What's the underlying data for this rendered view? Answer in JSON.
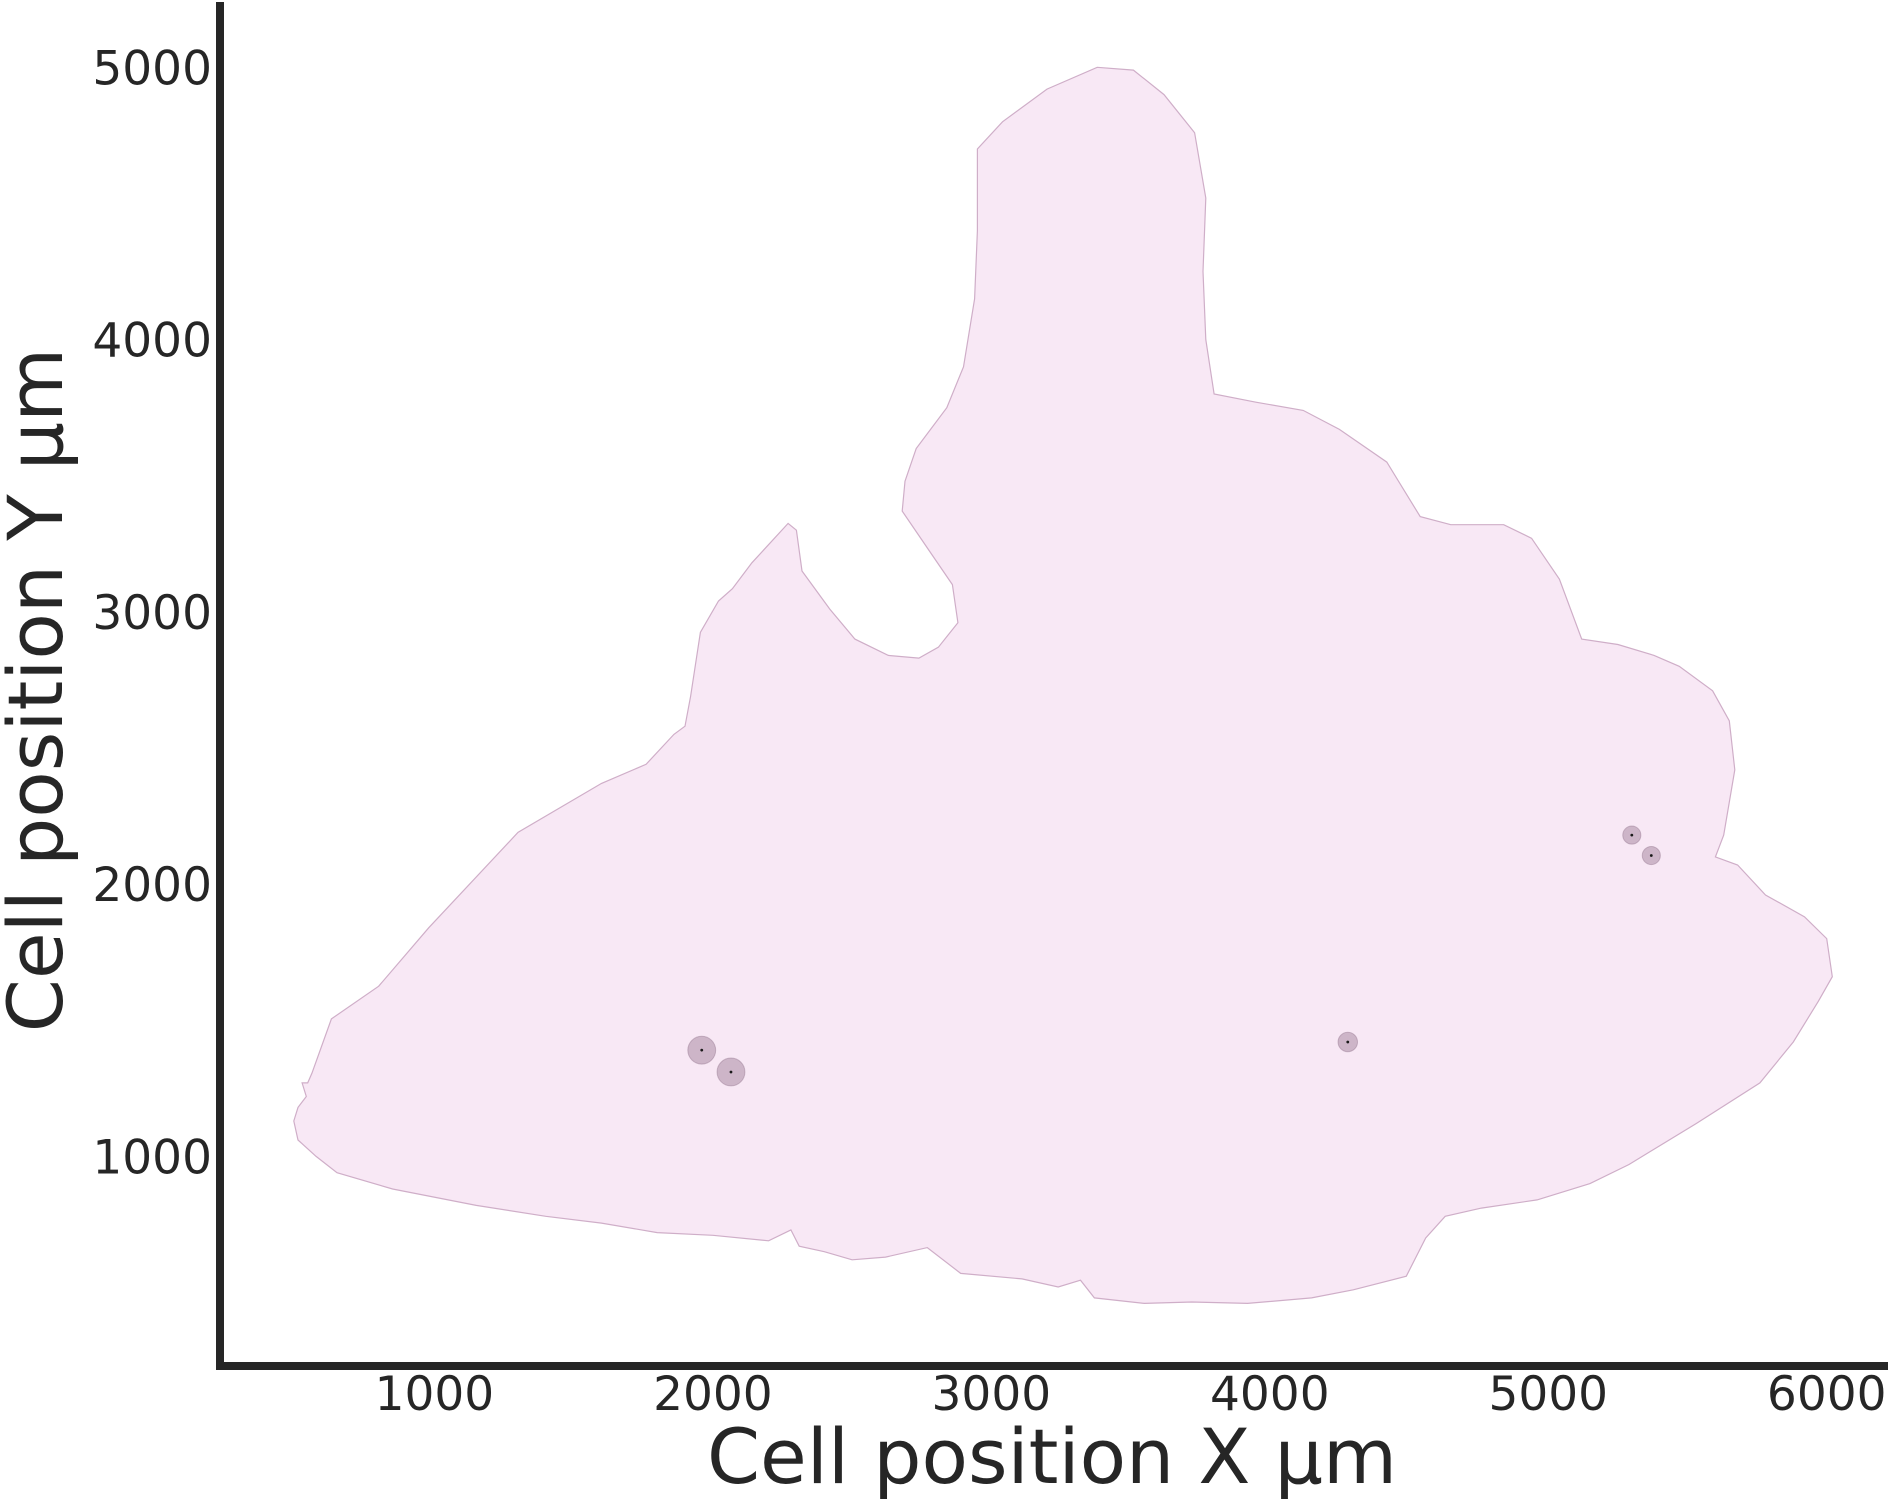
{
  "chart_data": {
    "type": "scatter",
    "title": "",
    "xlabel": "Cell position X µm",
    "ylabel": "Cell position Y µm",
    "xlim": [
      230,
      6220
    ],
    "ylim": [
      230,
      5240
    ],
    "xticks": [
      1000,
      2000,
      3000,
      4000,
      5000,
      6000
    ],
    "yticks": [
      1000,
      2000,
      3000,
      4000,
      5000
    ],
    "grid": false,
    "tissue_region": {
      "fill": "#f8e8f5",
      "stroke": "#cfaec8",
      "outline": [
        [
          525,
          1270
        ],
        [
          545,
          1270
        ],
        [
          560,
          1305
        ],
        [
          630,
          1505
        ],
        [
          800,
          1625
        ],
        [
          980,
          1840
        ],
        [
          1300,
          2190
        ],
        [
          1600,
          2370
        ],
        [
          1760,
          2440
        ],
        [
          1860,
          2550
        ],
        [
          1900,
          2580
        ],
        [
          1920,
          2690
        ],
        [
          1955,
          2925
        ],
        [
          2020,
          3040
        ],
        [
          2070,
          3085
        ],
        [
          2140,
          3180
        ],
        [
          2270,
          3325
        ],
        [
          2300,
          3300
        ],
        [
          2320,
          3150
        ],
        [
          2420,
          3010
        ],
        [
          2510,
          2900
        ],
        [
          2630,
          2840
        ],
        [
          2740,
          2830
        ],
        [
          2810,
          2870
        ],
        [
          2880,
          2960
        ],
        [
          2860,
          3100
        ],
        [
          2780,
          3220
        ],
        [
          2680,
          3370
        ],
        [
          2690,
          3480
        ],
        [
          2730,
          3600
        ],
        [
          2840,
          3750
        ],
        [
          2900,
          3900
        ],
        [
          2940,
          4150
        ],
        [
          2950,
          4400
        ],
        [
          2950,
          4700
        ],
        [
          3040,
          4800
        ],
        [
          3200,
          4920
        ],
        [
          3380,
          5000
        ],
        [
          3510,
          4990
        ],
        [
          3620,
          4900
        ],
        [
          3730,
          4760
        ],
        [
          3770,
          4520
        ],
        [
          3760,
          4250
        ],
        [
          3770,
          4000
        ],
        [
          3800,
          3800
        ],
        [
          3950,
          3770
        ],
        [
          4120,
          3740
        ],
        [
          4250,
          3670
        ],
        [
          4420,
          3550
        ],
        [
          4540,
          3350
        ],
        [
          4650,
          3320
        ],
        [
          4840,
          3320
        ],
        [
          4940,
          3270
        ],
        [
          5040,
          3120
        ],
        [
          5120,
          2900
        ],
        [
          5250,
          2880
        ],
        [
          5380,
          2840
        ],
        [
          5470,
          2800
        ],
        [
          5590,
          2710
        ],
        [
          5650,
          2600
        ],
        [
          5670,
          2420
        ],
        [
          5630,
          2180
        ],
        [
          5600,
          2100
        ],
        [
          5680,
          2070
        ],
        [
          5780,
          1960
        ],
        [
          5920,
          1880
        ],
        [
          6000,
          1800
        ],
        [
          6020,
          1660
        ],
        [
          5970,
          1570
        ],
        [
          5880,
          1420
        ],
        [
          5760,
          1270
        ],
        [
          5530,
          1120
        ],
        [
          5290,
          970
        ],
        [
          5150,
          900
        ],
        [
          4960,
          840
        ],
        [
          4760,
          810
        ],
        [
          4630,
          780
        ],
        [
          4560,
          700
        ],
        [
          4490,
          560
        ],
        [
          4300,
          510
        ],
        [
          4150,
          480
        ],
        [
          3920,
          460
        ],
        [
          3720,
          465
        ],
        [
          3550,
          460
        ],
        [
          3370,
          480
        ],
        [
          3320,
          545
        ],
        [
          3240,
          520
        ],
        [
          3110,
          550
        ],
        [
          2890,
          570
        ],
        [
          2770,
          665
        ],
        [
          2620,
          630
        ],
        [
          2500,
          620
        ],
        [
          2400,
          650
        ],
        [
          2310,
          670
        ],
        [
          2280,
          730
        ],
        [
          2200,
          690
        ],
        [
          2000,
          710
        ],
        [
          1800,
          720
        ],
        [
          1600,
          755
        ],
        [
          1400,
          780
        ],
        [
          1150,
          820
        ],
        [
          850,
          880
        ],
        [
          650,
          940
        ],
        [
          575,
          1000
        ],
        [
          510,
          1060
        ],
        [
          495,
          1130
        ],
        [
          510,
          1180
        ],
        [
          540,
          1220
        ]
      ]
    },
    "series": [
      {
        "points": [
          {
            "x": 1960,
            "y": 1390,
            "r": 100
          },
          {
            "x": 2065,
            "y": 1310,
            "r": 100
          },
          {
            "x": 4280,
            "y": 1420,
            "r": 70
          },
          {
            "x": 5300,
            "y": 2180,
            "r": 65
          },
          {
            "x": 5370,
            "y": 2105,
            "r": 65
          }
        ],
        "color": "#a98aa3"
      }
    ]
  }
}
